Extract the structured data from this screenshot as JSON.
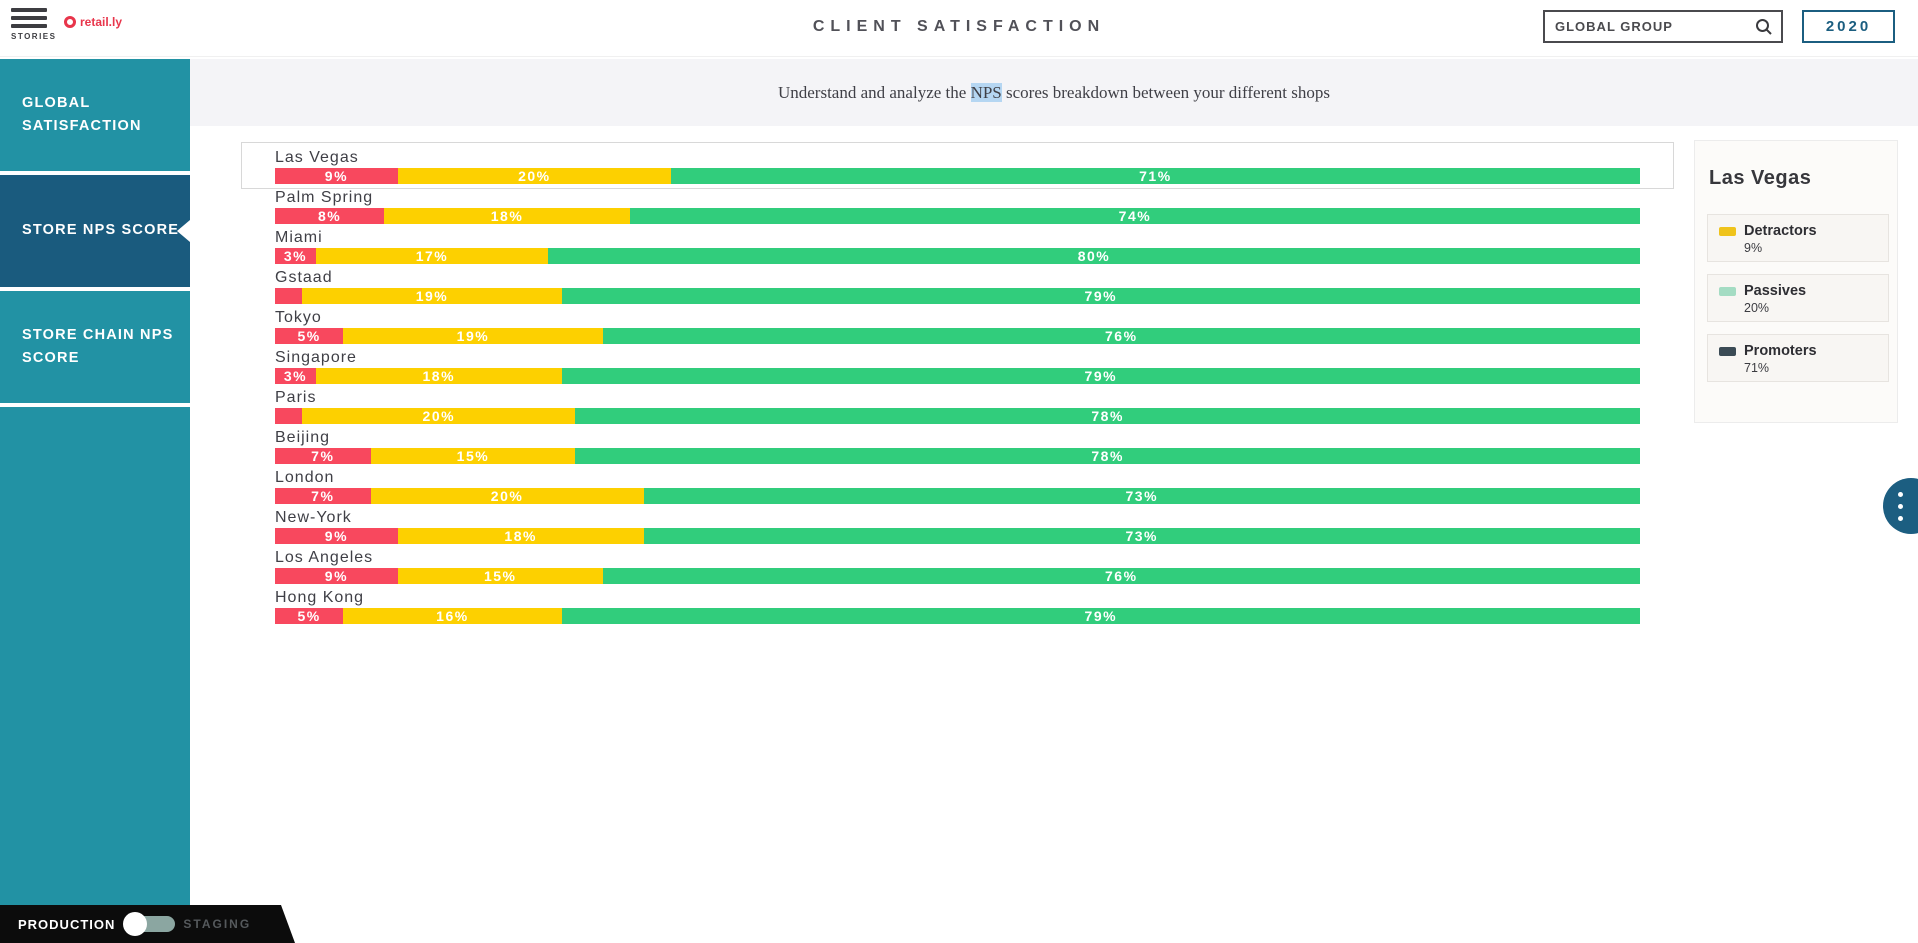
{
  "header": {
    "menu_label": "STORIES",
    "logo_text": "retail.ly",
    "title": "CLIENT SATISFACTION",
    "search_value": "GLOBAL GROUP",
    "year_button": "2020"
  },
  "sidebar": {
    "items": [
      {
        "label": "GLOBAL SATISFACTION",
        "active": false
      },
      {
        "label": "STORE NPS SCORE",
        "active": true
      },
      {
        "label": "STORE CHAIN NPS SCORE",
        "active": false
      }
    ]
  },
  "subtitle": {
    "before": "Understand and analyze the ",
    "highlight": "NPS",
    "after": " scores breakdown between your different shops"
  },
  "chart_data": {
    "type": "bar",
    "stacked": true,
    "orientation": "horizontal",
    "unit": "%",
    "xlim": [
      0,
      100
    ],
    "series_keys": [
      "detractors",
      "passives",
      "promoters"
    ],
    "series_names": [
      "Detractors",
      "Passives",
      "Promoters"
    ],
    "colors": {
      "detractors": "#f8485e",
      "passives": "#fdd000",
      "promoters": "#31cd7c"
    },
    "min_label_value": 3,
    "rows": [
      {
        "city": "Las Vegas",
        "detractors": 9,
        "passives": 20,
        "promoters": 71,
        "selected": true
      },
      {
        "city": "Palm Spring",
        "detractors": 8,
        "passives": 18,
        "promoters": 74,
        "selected": false
      },
      {
        "city": "Miami",
        "detractors": 3,
        "passives": 17,
        "promoters": 80,
        "selected": false
      },
      {
        "city": "Gstaad",
        "detractors": 2,
        "passives": 19,
        "promoters": 79,
        "selected": false
      },
      {
        "city": "Tokyo",
        "detractors": 5,
        "passives": 19,
        "promoters": 76,
        "selected": false
      },
      {
        "city": "Singapore",
        "detractors": 3,
        "passives": 18,
        "promoters": 79,
        "selected": false
      },
      {
        "city": "Paris",
        "detractors": 2,
        "passives": 20,
        "promoters": 78,
        "selected": false
      },
      {
        "city": "Beijing",
        "detractors": 7,
        "passives": 15,
        "promoters": 78,
        "selected": false
      },
      {
        "city": "London",
        "detractors": 7,
        "passives": 20,
        "promoters": 73,
        "selected": false
      },
      {
        "city": "New-York",
        "detractors": 9,
        "passives": 18,
        "promoters": 73,
        "selected": false
      },
      {
        "city": "Los Angeles",
        "detractors": 9,
        "passives": 15,
        "promoters": 76,
        "selected": false
      },
      {
        "city": "Hong Kong",
        "detractors": 5,
        "passives": 16,
        "promoters": 79,
        "selected": false
      }
    ]
  },
  "detail_panel": {
    "title": "Las Vegas",
    "legend": [
      {
        "label": "Detractors",
        "value": "9%",
        "swatch": "#efc31b"
      },
      {
        "label": "Passives",
        "value": "20%",
        "swatch": "#a4dcc3"
      },
      {
        "label": "Promoters",
        "value": "71%",
        "swatch": "#3b4b55"
      }
    ]
  },
  "footer": {
    "production_label": "PRODUCTION",
    "staging_label": "STAGING",
    "toggle_state": "production"
  }
}
